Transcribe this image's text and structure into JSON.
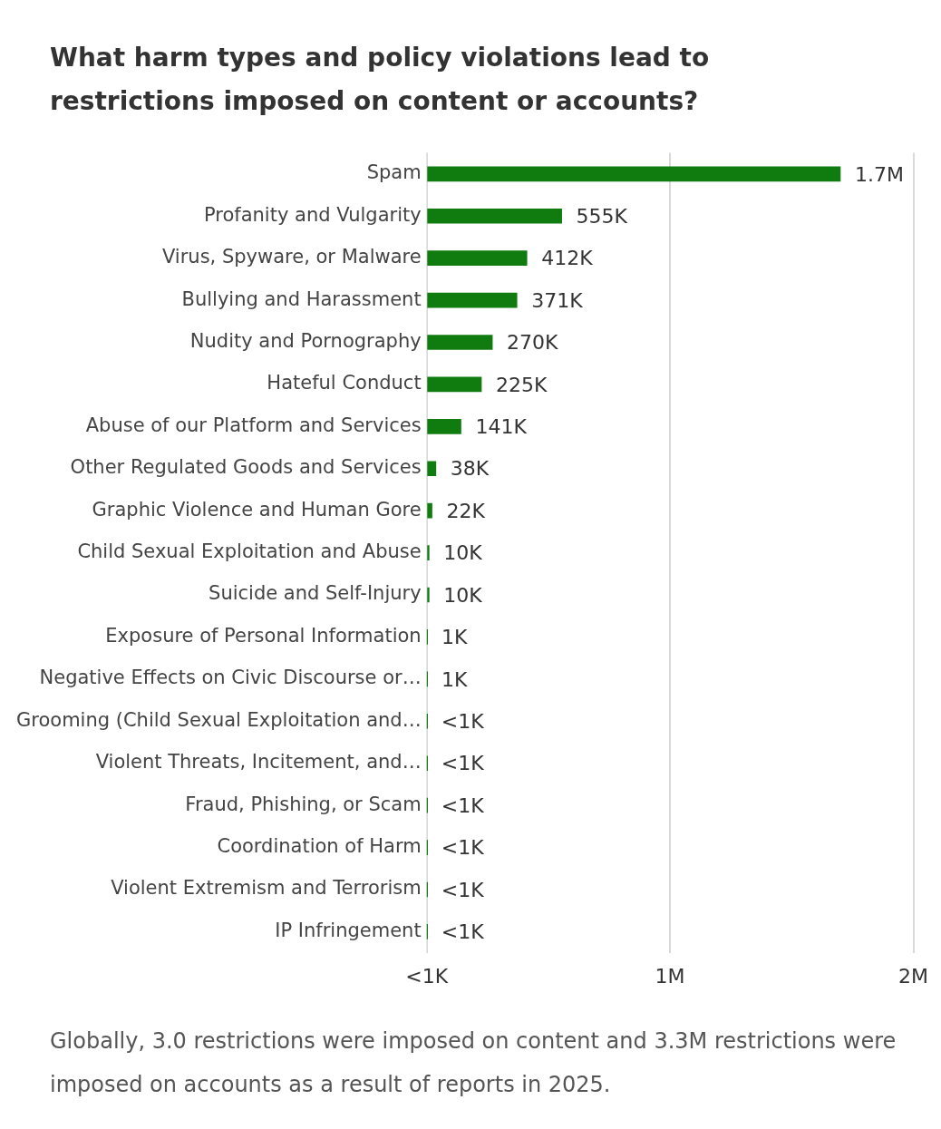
{
  "chart_data": {
    "type": "bar",
    "orientation": "horizontal",
    "title": "What harm types and policy violations lead to restrictions imposed on content or accounts?",
    "categories": [
      "Spam",
      "Profanity and Vulgarity",
      "Virus, Spyware, or Malware",
      "Bullying and Harassment",
      "Nudity and Pornography",
      "Hateful Conduct",
      "Abuse of our Platform and Services",
      "Other Regulated Goods and Services",
      "Graphic Violence and Human Gore",
      "Child Sexual Exploitation and Abuse",
      "Suicide and Self-Injury",
      "Exposure of Personal Information",
      "Negative Effects on Civic Discourse or…",
      "Grooming (Child Sexual Exploitation and…",
      "Violent Threats, Incitement, and…",
      "Fraud, Phishing, or Scam",
      "Coordination of Harm",
      "Violent Extremism and Terrorism",
      "IP Infringement"
    ],
    "values": [
      1700000,
      555000,
      412000,
      371000,
      270000,
      225000,
      141000,
      38000,
      22000,
      10000,
      10000,
      1000,
      1000,
      500,
      500,
      500,
      500,
      500,
      500
    ],
    "value_labels": [
      "1.7M",
      "555K",
      "412K",
      "371K",
      "270K",
      "225K",
      "141K",
      "38K",
      "22K",
      "10K",
      "10K",
      "1K",
      "1K",
      "<1K",
      "<1K",
      "<1K",
      "<1K",
      "<1K",
      "<1K"
    ],
    "color": "#107c10",
    "xlim": [
      0,
      2000000
    ],
    "xticks": [
      {
        "value": 0,
        "label": "<1K"
      },
      {
        "value": 1000000,
        "label": "1M"
      },
      {
        "value": 2000000,
        "label": "2M"
      }
    ],
    "grid": "x",
    "annotations": [
      "Globally, 3.0 restrictions were imposed on content and 3.3M restrictions were imposed on accounts as a result of reports in 2025."
    ]
  }
}
